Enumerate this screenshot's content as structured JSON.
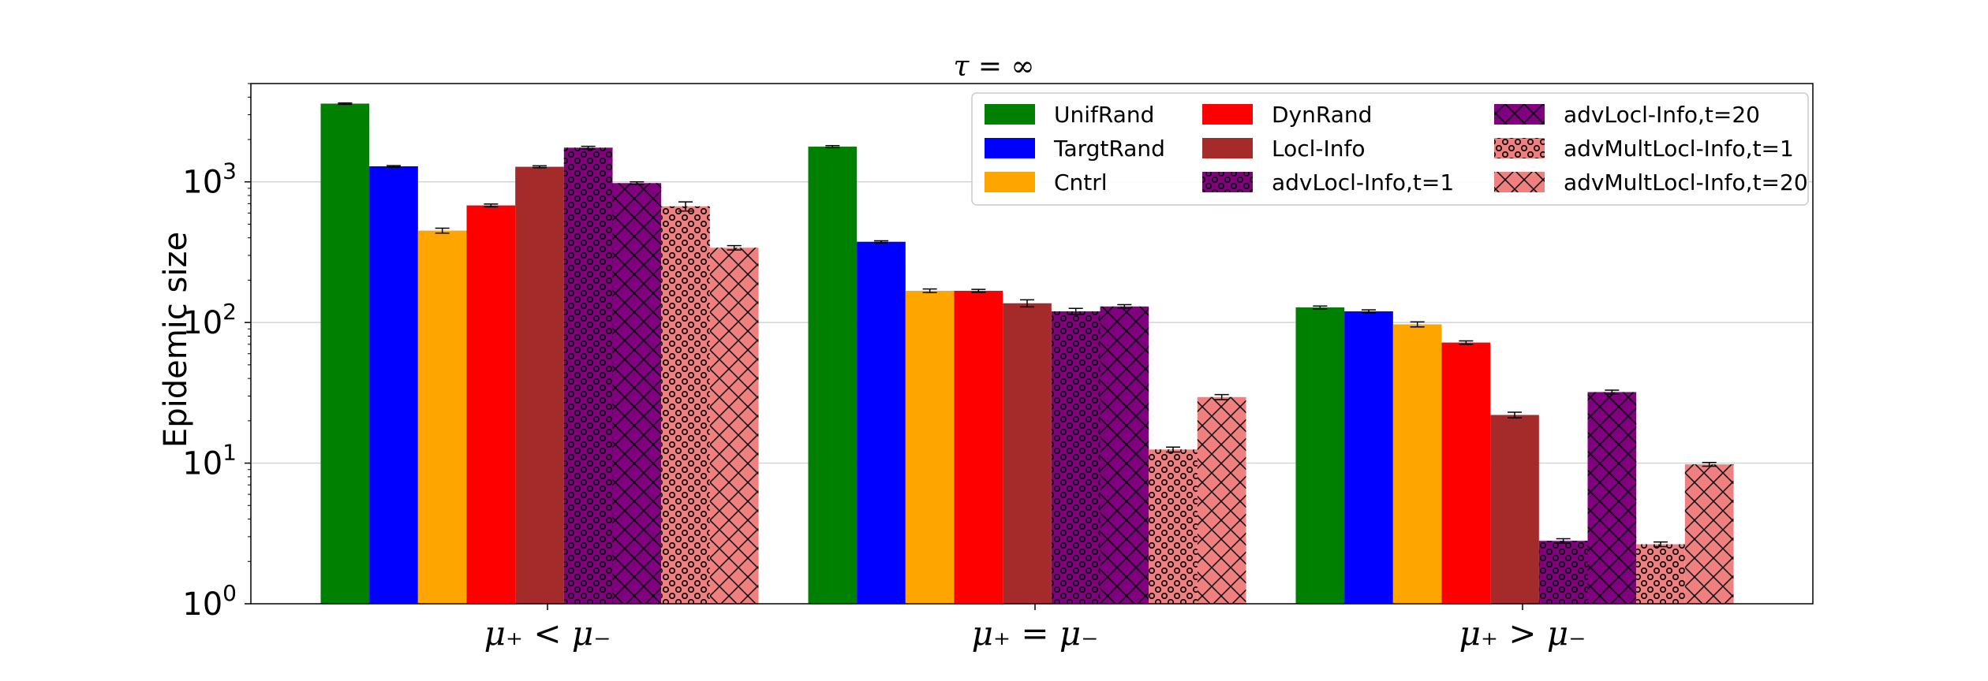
{
  "chart_data": {
    "type": "bar",
    "title": "τ = ∞",
    "xlabel": "",
    "ylabel": "Epidemic size",
    "yscale": "log",
    "ylim": [
      1,
      5000
    ],
    "yticks": [
      {
        "value": 1,
        "label": "10",
        "exp": "0"
      },
      {
        "value": 10,
        "label": "10",
        "exp": "1"
      },
      {
        "value": 100,
        "label": "10",
        "exp": "2"
      },
      {
        "value": 1000,
        "label": "10",
        "exp": "3"
      }
    ],
    "grid": "y-major",
    "legend_position": "top-right",
    "categories": [
      "μ₊ < μ₋",
      "μ₊ = μ₋",
      "μ₊ > μ₋"
    ],
    "series": [
      {
        "name": "UnifRand",
        "color": "#008000",
        "hatch": "none",
        "values": [
          3600,
          1780,
          128
        ],
        "errors": [
          40,
          30,
          3
        ]
      },
      {
        "name": "TargtRand",
        "color": "#0000ff",
        "hatch": "none",
        "values": [
          1290,
          375,
          120
        ],
        "errors": [
          15,
          6,
          3
        ]
      },
      {
        "name": "Cntrl",
        "color": "#ffa500",
        "hatch": "none",
        "values": [
          450,
          168,
          97
        ],
        "errors": [
          18,
          5,
          4
        ]
      },
      {
        "name": "DynRand",
        "color": "#ff0000",
        "hatch": "none",
        "values": [
          680,
          168,
          72
        ],
        "errors": [
          15,
          4,
          2
        ]
      },
      {
        "name": "Locl-Info",
        "color": "#a52a2a",
        "hatch": "none",
        "values": [
          1280,
          137,
          22
        ],
        "errors": [
          20,
          8,
          1
        ]
      },
      {
        "name": "advLocl-Info,t=1",
        "color": "#800080",
        "hatch": "dots",
        "values": [
          1750,
          120,
          2.8
        ],
        "errors": [
          40,
          6,
          0.1
        ]
      },
      {
        "name": "advLocl-Info,t=20",
        "color": "#800080",
        "hatch": "cross",
        "values": [
          980,
          130,
          32
        ],
        "errors": [
          20,
          4,
          1
        ]
      },
      {
        "name": "advMultLocl-Info,t=1",
        "color": "#f08080",
        "hatch": "dots",
        "values": [
          670,
          12.5,
          2.65
        ],
        "errors": [
          50,
          0.5,
          0.1
        ]
      },
      {
        "name": "advMultLocl-Info,t=20",
        "color": "#f08080",
        "hatch": "cross",
        "values": [
          340,
          29.5,
          9.8
        ],
        "errors": [
          12,
          1.2,
          0.3
        ]
      }
    ]
  }
}
